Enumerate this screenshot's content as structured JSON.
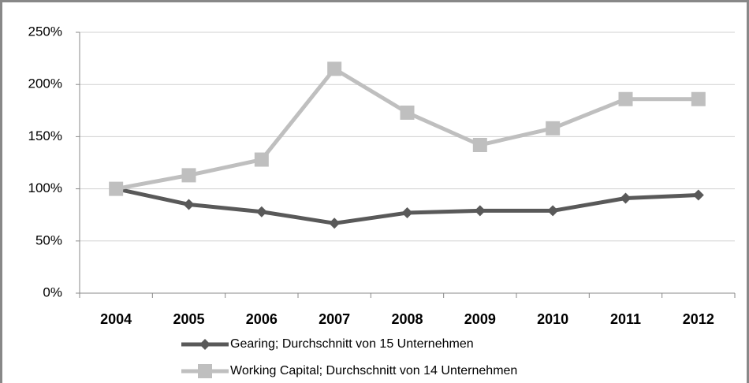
{
  "chart_data": {
    "type": "line",
    "categories": [
      "2004",
      "2005",
      "2006",
      "2007",
      "2008",
      "2009",
      "2010",
      "2011",
      "2012"
    ],
    "series": [
      {
        "name": "Gearing; Durchschnitt von 15 Unternehmen",
        "color": "#595959",
        "marker": "diamond",
        "values": [
          100,
          85,
          78,
          67,
          77,
          79,
          79,
          91,
          94
        ]
      },
      {
        "name": "Working Capital; Durchschnitt von 14 Unternehmen",
        "color": "#bfbfbf",
        "marker": "square",
        "values": [
          100,
          113,
          128,
          215,
          173,
          142,
          158,
          186,
          186
        ]
      }
    ],
    "ylim": [
      0,
      250
    ],
    "yticks": [
      {
        "value": 0,
        "label": "0%"
      },
      {
        "value": 50,
        "label": "50%"
      },
      {
        "value": 100,
        "label": "100%"
      },
      {
        "value": 150,
        "label": "150%"
      },
      {
        "value": 200,
        "label": "200%"
      },
      {
        "value": 250,
        "label": "250%"
      }
    ],
    "grid": true,
    "legend": "bottom"
  }
}
